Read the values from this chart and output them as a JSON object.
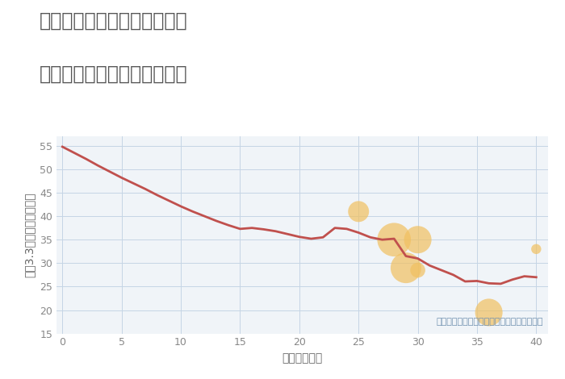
{
  "title_line1": "奈良県奈良市学園朝日元町の",
  "title_line2": "築年数別中古マンション価格",
  "xlabel": "築年数（年）",
  "ylabel": "坪（3.3㎡）単価（万円）",
  "line_x": [
    0,
    1,
    2,
    3,
    4,
    5,
    6,
    7,
    8,
    9,
    10,
    11,
    12,
    13,
    14,
    15,
    16,
    17,
    18,
    19,
    20,
    21,
    22,
    23,
    24,
    25,
    26,
    27,
    28,
    29,
    30,
    31,
    32,
    33,
    34,
    35,
    36,
    37,
    38,
    39,
    40
  ],
  "line_y": [
    54.8,
    53.5,
    52.2,
    50.8,
    49.5,
    48.2,
    47.0,
    45.8,
    44.5,
    43.3,
    42.1,
    41.0,
    40.0,
    39.0,
    38.1,
    37.3,
    37.5,
    37.2,
    36.8,
    36.2,
    35.6,
    35.2,
    35.5,
    37.5,
    37.3,
    36.5,
    35.5,
    35.0,
    35.2,
    31.5,
    31.0,
    29.5,
    28.5,
    27.5,
    26.1,
    26.2,
    25.7,
    25.6,
    26.5,
    27.2,
    27.0
  ],
  "bubble_x": [
    25,
    28,
    29,
    30,
    30,
    36,
    40
  ],
  "bubble_y": [
    41,
    35,
    29,
    28.5,
    35,
    19.5,
    33
  ],
  "bubble_size": [
    350,
    900,
    750,
    180,
    600,
    600,
    80
  ],
  "bubble_color": "#f0c060",
  "bubble_alpha": 0.7,
  "line_color": "#c0504d",
  "line_width": 2.0,
  "bg_color": "#f0f4f8",
  "grid_color": "#c5d5e5",
  "xlim": [
    -0.5,
    41
  ],
  "ylim": [
    15,
    57
  ],
  "xticks": [
    0,
    5,
    10,
    15,
    20,
    25,
    30,
    35,
    40
  ],
  "yticks": [
    15,
    20,
    25,
    30,
    35,
    40,
    45,
    50,
    55
  ],
  "annotation": "円の大きさは、取引のあった物件面積を示す",
  "annotation_color": "#7090b0",
  "title_color": "#555555",
  "axis_label_color": "#666666",
  "tick_color": "#888888",
  "title_fontsize": 17,
  "axis_fontsize": 10,
  "tick_fontsize": 9,
  "annotation_fontsize": 8
}
